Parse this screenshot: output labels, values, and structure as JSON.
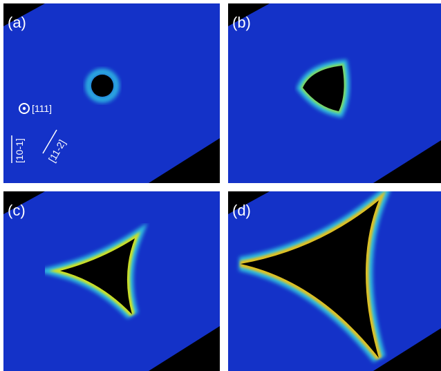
{
  "panels": [
    {
      "label": "(a)"
    },
    {
      "label": "(b)"
    },
    {
      "label": "(c)"
    },
    {
      "label": "(d)"
    }
  ],
  "annotations": {
    "zone_axis": "[111]",
    "direction_1": "[10-1]",
    "direction_2": "[11-2]"
  }
}
